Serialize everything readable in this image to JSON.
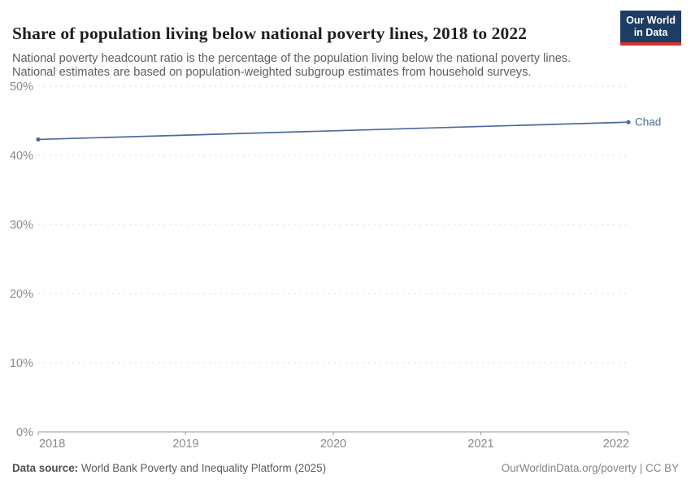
{
  "header": {
    "title": "Share of population living below national poverty lines, 2018 to 2022",
    "subtitle_line1": "National poverty headcount ratio is the percentage of the population living below the national poverty lines.",
    "subtitle_line2": "National estimates are based on population-weighted subgroup estimates from household surveys.",
    "logo": {
      "line1": "Our World",
      "line2": "in Data"
    }
  },
  "chart_data": {
    "type": "line",
    "title": "Share of population living below national poverty lines, 2018 to 2022",
    "x": [
      2018,
      2022
    ],
    "series": [
      {
        "name": "Chad",
        "values": [
          42.3,
          44.8
        ],
        "color": "#4c6a9c"
      }
    ],
    "end_label": "Chad",
    "xlim": [
      2018,
      2022
    ],
    "ylim": [
      0,
      50
    ],
    "xticks": [
      2018,
      2019,
      2020,
      2021,
      2022
    ],
    "xtick_labels": [
      "2018",
      "2019",
      "2020",
      "2021",
      "2022"
    ],
    "yticks": [
      0,
      10,
      20,
      30,
      40,
      50
    ],
    "ytick_labels": [
      "0%",
      "10%",
      "20%",
      "30%",
      "40%",
      "50%"
    ],
    "grid": "horizontal-dashed",
    "legend_position": "end-of-line",
    "markers": "endpoints"
  },
  "footer": {
    "source_label": "Data source:",
    "source_text": " World Bank Poverty and Inequality Platform (2025)",
    "attribution": "OurWorldinData.org/poverty | CC BY"
  },
  "colors": {
    "line": "#4c6a9c",
    "grid": "#dedede",
    "axis": "#999999",
    "tick_text": "#8a8a8a",
    "logo_bg": "#1d3d63",
    "logo_bar": "#d0342c"
  }
}
